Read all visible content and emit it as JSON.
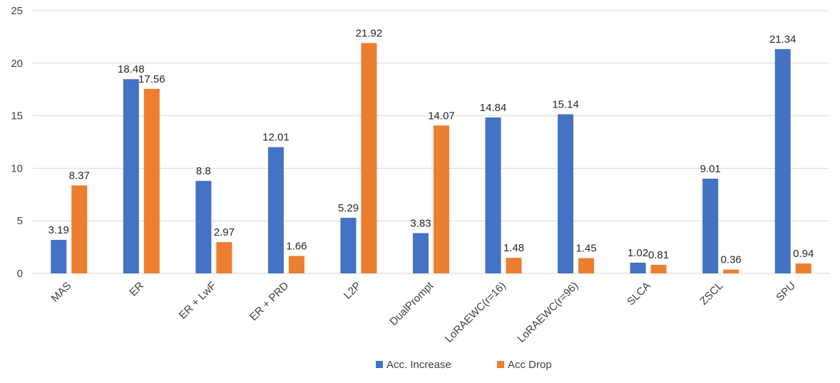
{
  "chart_data": {
    "type": "bar",
    "title": "",
    "xlabel": "",
    "ylabel": "",
    "ylim": [
      0,
      25
    ],
    "yticks": [
      "0",
      "5",
      "10",
      "15",
      "20",
      "25"
    ],
    "grid": true,
    "legend_position": "bottom",
    "categories": [
      "MAS",
      "ER",
      "ER + LwF",
      "ER + PRD",
      "L2P",
      "DualPrompt",
      "LoRAEWC(r=16)",
      "LoRAEWC(r=96)",
      "SLCA",
      "ZSCL",
      "SPU"
    ],
    "series": [
      {
        "name": "Acc. Increase",
        "color": "#4472C4",
        "values": [
          3.19,
          18.48,
          8.8,
          12.01,
          5.29,
          3.83,
          14.84,
          15.14,
          1.02,
          9.01,
          21.34
        ],
        "labels": [
          "3.19",
          "18.48",
          "8.8",
          "12.01",
          "5.29",
          "3.83",
          "14.84",
          "15.14",
          "1.02",
          "9.01",
          "21.34"
        ]
      },
      {
        "name": "Acc Drop",
        "color": "#ED7D31",
        "values": [
          8.37,
          17.56,
          2.97,
          1.66,
          21.92,
          14.07,
          1.48,
          1.45,
          0.81,
          0.36,
          0.94
        ],
        "labels": [
          "8.37",
          "17.56",
          "2.97",
          "1.66",
          "21.92",
          "14.07",
          "1.48",
          "1.45",
          "0.81",
          "0.36",
          "0.94"
        ]
      }
    ]
  }
}
